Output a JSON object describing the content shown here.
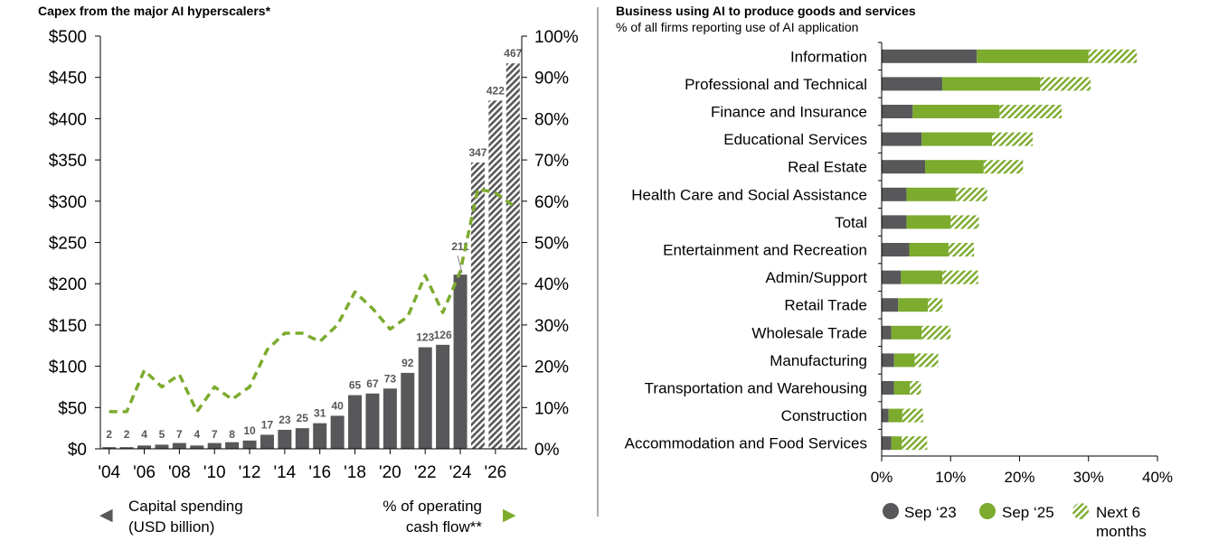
{
  "colors": {
    "gray": "#58585a",
    "green": "#7cab2e",
    "hatch_gray": "#58585a",
    "divider": "#7f7f7f",
    "text": "#000000"
  },
  "chart_data": [
    {
      "type": "bar",
      "title": "Capex from the major AI hyperscalers*",
      "years": [
        2004,
        2005,
        2006,
        2007,
        2008,
        2009,
        2010,
        2011,
        2012,
        2013,
        2014,
        2015,
        2016,
        2017,
        2018,
        2019,
        2020,
        2021,
        2022,
        2023,
        2024,
        2025,
        2026,
        2027
      ],
      "x_tick_labels": [
        "'04",
        "'06",
        "'08",
        "'10",
        "'12",
        "'14",
        "'16",
        "'18",
        "'20",
        "'22",
        "'24",
        "'26"
      ],
      "capex_values": [
        2,
        2,
        4,
        5,
        7,
        4,
        7,
        8,
        10,
        17,
        23,
        25,
        31,
        40,
        65,
        67,
        73,
        92,
        123,
        126,
        211,
        347,
        422,
        467
      ],
      "capex_labels": [
        "2",
        "2",
        "4",
        "5",
        "7",
        "4",
        "7",
        "8",
        "10",
        "17",
        "23",
        "25",
        "31",
        "40",
        "65",
        "67",
        "73",
        "92",
        "123",
        "126",
        "211",
        "347",
        "422",
        "467"
      ],
      "forecast_from": 2025,
      "pct_operating_cash_flow": [
        [
          2004,
          9
        ],
        [
          2005,
          9
        ],
        [
          2006,
          19
        ],
        [
          2007,
          15
        ],
        [
          2008,
          18
        ],
        [
          2009,
          9
        ],
        [
          2010,
          15
        ],
        [
          2011,
          12
        ],
        [
          2012,
          15
        ],
        [
          2013,
          24
        ],
        [
          2014,
          28
        ],
        [
          2015,
          28
        ],
        [
          2016,
          26
        ],
        [
          2017,
          30
        ],
        [
          2018,
          38
        ],
        [
          2019,
          34
        ],
        [
          2020,
          29
        ],
        [
          2021,
          32
        ],
        [
          2022,
          42
        ],
        [
          2023,
          33
        ],
        [
          2024,
          43
        ],
        [
          2025,
          63
        ],
        [
          2026,
          62
        ],
        [
          2027,
          59
        ]
      ],
      "left_axis_ticks": [
        "$0",
        "$50",
        "$100",
        "$150",
        "$200",
        "$250",
        "$300",
        "$350",
        "$400",
        "$450",
        "$500"
      ],
      "left_ylim": [
        0,
        500
      ],
      "right_axis_ticks": [
        "0%",
        "10%",
        "20%",
        "30%",
        "40%",
        "50%",
        "60%",
        "70%",
        "80%",
        "90%",
        "100%"
      ],
      "right_ylim": [
        0,
        100
      ],
      "legend": {
        "capex_line1": "Capital spending",
        "capex_line2": "(USD billion)",
        "ocf_line1": "% of operating",
        "ocf_line2": "cash flow**",
        "left_arrow": "◀",
        "right_arrow": "▶"
      }
    },
    {
      "type": "bar",
      "orientation": "horizontal",
      "stacked": true,
      "title": "Business using AI to produce goods and services",
      "subtitle": "% of all firms reporting use of AI application",
      "categories": [
        "Information",
        "Professional and Technical",
        "Finance and Insurance",
        "Educational Services",
        "Real Estate",
        "Health Care and Social Assistance",
        "Total",
        "Entertainment and Recreation",
        "Admin/Support",
        "Retail Trade",
        "Wholesale Trade",
        "Manufacturing",
        "Transportation and Warehousing",
        "Construction",
        "Accommodation and Food Services"
      ],
      "series": [
        {
          "name": "Sep ‘23",
          "values": [
            13.8,
            8.8,
            4.5,
            5.8,
            6.3,
            3.6,
            3.6,
            4.0,
            2.8,
            2.4,
            1.4,
            1.8,
            1.8,
            1.0,
            1.4
          ]
        },
        {
          "name": "Sep ‘25",
          "values": [
            16.2,
            14.2,
            12.6,
            10.2,
            8.5,
            7.2,
            6.4,
            5.7,
            6.0,
            4.3,
            4.4,
            3.0,
            2.3,
            2.0,
            1.5
          ]
        },
        {
          "name": "Next 6 months",
          "values": [
            7.0,
            7.3,
            9.0,
            5.9,
            5.7,
            4.5,
            4.1,
            3.7,
            5.2,
            2.1,
            4.2,
            3.4,
            1.6,
            3.0,
            3.7
          ]
        }
      ],
      "x_tick_labels": [
        "0%",
        "10%",
        "20%",
        "30%",
        "40%"
      ],
      "xlim": [
        0,
        40
      ],
      "legend_labels": {
        "sep23": "Sep ‘23",
        "sep25": "Sep ‘25",
        "next6_line1": "Next 6",
        "next6_line2": "months"
      }
    }
  ]
}
